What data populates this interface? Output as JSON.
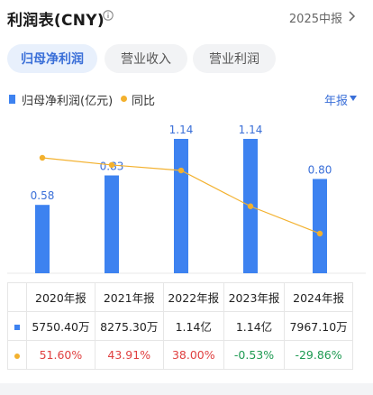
{
  "header": {
    "title": "利润表(CNY)",
    "period": "2025中报"
  },
  "tabs": [
    {
      "label": "归母净利润",
      "active": true
    },
    {
      "label": "营业收入",
      "active": false
    },
    {
      "label": "营业利润",
      "active": false
    }
  ],
  "legend": {
    "bar_label": "归母净利润(亿元)",
    "line_label": "同比"
  },
  "frequency": "年报",
  "colors": {
    "bar": "#3d82f0",
    "line": "#f3b12e",
    "positive": "#e04040",
    "negative": "#1e9a52",
    "accent": "#3a6fd8"
  },
  "chart_data": {
    "type": "bar",
    "categories": [
      "2020年报",
      "2021年报",
      "2022年报",
      "2023年报",
      "2024年报"
    ],
    "series": [
      {
        "name": "归母净利润(亿元)",
        "type": "bar",
        "values": [
          0.58,
          0.83,
          1.14,
          1.14,
          0.8
        ],
        "labels": [
          "0.58",
          "0.83",
          "1.14",
          "1.14",
          "0.80"
        ]
      },
      {
        "name": "同比",
        "type": "line",
        "values": [
          51.6,
          43.91,
          38.0,
          -0.53,
          -29.86
        ]
      }
    ],
    "ylim": [
      0,
      1.14
    ]
  },
  "table": {
    "years": [
      "2020年报",
      "2021年报",
      "2022年报",
      "2023年报",
      "2024年报"
    ],
    "profit": [
      "5750.40万",
      "8275.30万",
      "1.14亿",
      "1.14亿",
      "7967.10万"
    ],
    "yoy": [
      "51.60%",
      "43.91%",
      "38.00%",
      "-0.53%",
      "-29.86%"
    ]
  }
}
